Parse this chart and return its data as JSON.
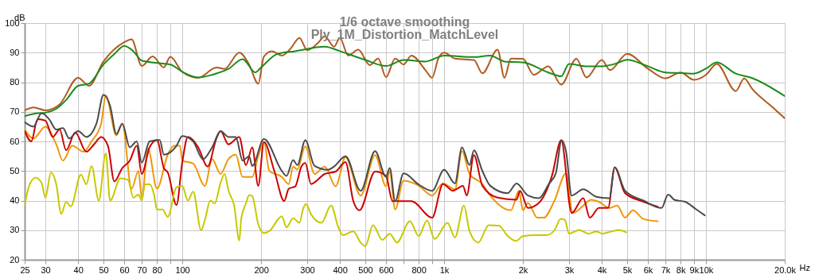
{
  "chart_data": {
    "type": "line",
    "title": "1/6 octave smoothing",
    "subtitle": "Ply_1M_Distortion_MatchLevel",
    "xlabel": "Hz",
    "ylabel": "dB",
    "log": "x",
    "grid": true,
    "xlim": [
      25,
      20000
    ],
    "ylim": [
      20,
      100
    ],
    "xticks": [
      25,
      30,
      40,
      50,
      60,
      70,
      80,
      {
        "value": 90,
        "label": null
      },
      100,
      200,
      300,
      400,
      500,
      600,
      {
        "value": 700,
        "label": null
      },
      800,
      {
        "value": 900,
        "label": null
      },
      {
        "value": 1000,
        "label": "1k"
      },
      {
        "value": 2000,
        "label": "2k"
      },
      {
        "value": 3000,
        "label": "3k"
      },
      {
        "value": 4000,
        "label": "4k"
      },
      {
        "value": 5000,
        "label": "5k"
      },
      {
        "value": 6000,
        "label": "6k"
      },
      {
        "value": 7000,
        "label": "7k"
      },
      {
        "value": 8000,
        "label": "8k"
      },
      {
        "value": 9000,
        "label": "9k"
      },
      {
        "value": 10000,
        "label": "10k"
      },
      {
        "value": 20000,
        "label": "20.0k"
      }
    ],
    "yticks": [
      20,
      30,
      40,
      50,
      60,
      70,
      80,
      90,
      100
    ],
    "series": [
      {
        "color": "#b05a20",
        "x": [
          25,
          27,
          30,
          34,
          40,
          44,
          50,
          60,
          64,
          70,
          77,
          85,
          90,
          100,
          115,
          135,
          145,
          165,
          180,
          195,
          205,
          220,
          240,
          260,
          280,
          300,
          330,
          350,
          380,
          400,
          430,
          470,
          520,
          560,
          600,
          650,
          700,
          750,
          850,
          900,
          950,
          1000,
          1100,
          1300,
          1400,
          1600,
          1700,
          1800,
          2000,
          2200,
          2500,
          2800,
          3200,
          3500,
          4000,
          4300,
          5000,
          6000,
          7000,
          8000,
          9000,
          10000,
          11000,
          13000,
          14000,
          15000,
          18000,
          20000
        ],
        "values": [
          70.5,
          71.5,
          70.5,
          72.5,
          81.5,
          78.8,
          87,
          93.5,
          94.5,
          85.5,
          88.7,
          85,
          88.6,
          83.5,
          81.5,
          85,
          84.5,
          90,
          86,
          79.5,
          88.7,
          90.5,
          89,
          91.5,
          95,
          90.8,
          93.3,
          95.5,
          92,
          95,
          89,
          91,
          85.8,
          88,
          81.7,
          88,
          86,
          89,
          84,
          81.5,
          88,
          90,
          88,
          87.5,
          83,
          91,
          81.5,
          88,
          87.9,
          82.5,
          85.4,
          79.2,
          87.9,
          81.6,
          87.5,
          84.1,
          89.6,
          84.6,
          81.3,
          83.3,
          80.8,
          82.5,
          86.2,
          77,
          81.3,
          77.8,
          71.5,
          67.8
        ]
      },
      {
        "color": "#1a8c1a",
        "x": [
          25,
          28,
          30,
          33,
          36,
          40,
          44,
          50,
          55,
          60,
          65,
          70,
          80,
          90,
          100,
          115,
          130,
          150,
          170,
          190,
          200,
          230,
          270,
          350,
          400,
          500,
          600,
          700,
          850,
          1000,
          1300,
          1500,
          1700,
          2000,
          2500,
          2800,
          3000,
          3500,
          4000,
          4500,
          5000,
          6000,
          7000,
          8000,
          9000,
          10000,
          11000,
          13000,
          15000,
          20000
        ],
        "values": [
          68.5,
          69.5,
          69.7,
          71,
          74,
          78.8,
          79.5,
          86,
          89.5,
          92.3,
          90.5,
          87.3,
          86.5,
          86,
          83.5,
          81.6,
          82.5,
          84.5,
          87.8,
          83.3,
          85,
          89.5,
          90.5,
          92,
          90.5,
          87.5,
          85.5,
          87.5,
          87,
          89,
          88.5,
          89,
          87,
          86.7,
          83.3,
          82,
          86.2,
          85.4,
          85.4,
          86.2,
          87.6,
          85.4,
          83.3,
          83.1,
          82.9,
          84.6,
          86.7,
          82.9,
          81.4,
          75.3
        ]
      },
      {
        "color": "#f0960a",
        "x": [
          25,
          27,
          30,
          33,
          35,
          38,
          42,
          45,
          49,
          51,
          56,
          59,
          64,
          68,
          70,
          74,
          80,
          88,
          93,
          98,
          100,
          110,
          122,
          130,
          140,
          150,
          160,
          170,
          185,
          195,
          205,
          215,
          240,
          255,
          265,
          275,
          295,
          320,
          350,
          385,
          420,
          480,
          545,
          600,
          620,
          650,
          700,
          800,
          900,
          990,
          1100,
          1170,
          1250,
          1400,
          1500,
          1800,
          1930,
          2000,
          2090,
          2270,
          2400,
          2640,
          2920,
          3100,
          3400,
          3640,
          3900,
          4280,
          4580,
          4910,
          5260,
          5770,
          6540
        ],
        "values": [
          64,
          61,
          65,
          59,
          53.5,
          58.5,
          56.5,
          60,
          66,
          75.5,
          62,
          66,
          44,
          50,
          41,
          57.5,
          44,
          55.5,
          58.5,
          58.5,
          53.5,
          52.5,
          45,
          54,
          49,
          54,
          55.5,
          48,
          48,
          55,
          59.8,
          50,
          48,
          45.6,
          51.5,
          50.5,
          58.3,
          49,
          51.5,
          44.8,
          54.6,
          41.7,
          55.4,
          44.8,
          50,
          37,
          46.7,
          45,
          41.7,
          45.8,
          43.8,
          56.7,
          49,
          45.6,
          41.7,
          36.7,
          43.3,
          36.7,
          39.2,
          34.2,
          34.2,
          40,
          49.2,
          35.8,
          38.3,
          40.3,
          39.6,
          37.5,
          38.3,
          34.2,
          36.7,
          33.8,
          33
        ]
      },
      {
        "color": "#cc0000",
        "x": [
          25,
          26.5,
          28,
          30,
          32,
          34,
          36,
          39,
          43,
          46,
          49,
          52,
          55,
          59,
          63,
          67,
          70,
          75,
          80,
          85,
          88,
          95,
          100,
          105,
          115,
          125,
          135,
          140,
          150,
          165,
          175,
          185,
          195,
          205,
          225,
          245,
          255,
          270,
          285,
          295,
          310,
          350,
          385,
          420,
          450,
          475,
          545,
          600,
          635,
          750,
          900,
          990,
          1080,
          1180,
          1220,
          1300,
          1400,
          1600,
          1890,
          1950,
          2090,
          2300,
          2580,
          2800,
          3070,
          3400,
          3600,
          3900,
          4230,
          4480,
          4910,
          5770,
          6540
        ],
        "values": [
          63.5,
          60,
          67.5,
          67,
          61.5,
          64,
          57,
          63,
          56.5,
          59,
          61.5,
          58.5,
          46.5,
          51,
          53.5,
          58.5,
          49,
          58,
          60.5,
          51,
          49.5,
          38.5,
          53,
          61.5,
          58,
          51.5,
          61,
          63.5,
          59,
          61.5,
          52,
          58,
          45,
          59.8,
          49.8,
          39.8,
          44,
          44.8,
          51.5,
          52.7,
          45.6,
          49,
          49.8,
          53,
          39.8,
          36.7,
          49.8,
          48.3,
          39.8,
          39.8,
          34.2,
          45.6,
          43.3,
          45,
          41.7,
          55.4,
          45,
          41,
          40.3,
          43.3,
          37.5,
          39.2,
          48.3,
          60.4,
          35.8,
          40.8,
          34.2,
          37.5,
          37.5,
          51.2,
          42.5,
          39.6,
          37.9
        ]
      },
      {
        "color": "#4a4a4a",
        "x": [
          25,
          27,
          29,
          31,
          33,
          35,
          37,
          40,
          43,
          47,
          50,
          53,
          56,
          59,
          63,
          67,
          70,
          75,
          82,
          85,
          95,
          100,
          110,
          120,
          130,
          140,
          150,
          160,
          170,
          180,
          185,
          205,
          240,
          250,
          265,
          275,
          295,
          320,
          360,
          380,
          420,
          480,
          545,
          600,
          620,
          650,
          700,
          800,
          900,
          1000,
          1100,
          1170,
          1250,
          1300,
          1400,
          1500,
          1750,
          1890,
          2090,
          2300,
          2520,
          2670,
          2810,
          2920,
          3070,
          3400,
          3810,
          4280,
          4480,
          4910,
          5770,
          6770,
          7170,
          7600,
          8330,
          9150,
          9900
        ],
        "values": [
          66.5,
          65,
          69.5,
          67.5,
          64,
          64.5,
          61,
          63.5,
          61.5,
          66,
          75.8,
          72,
          62.5,
          66,
          58,
          60,
          52.8,
          60,
          60.5,
          55.5,
          58.5,
          61.8,
          60,
          54,
          58,
          63.5,
          61.5,
          61.5,
          53.5,
          55,
          51.7,
          60.8,
          50,
          48.3,
          53.7,
          52,
          60.4,
          51.7,
          50.4,
          51.5,
          55,
          43.3,
          56.7,
          48,
          51,
          39.8,
          49.2,
          45.4,
          43.3,
          50.4,
          45.8,
          58,
          52,
          57,
          50,
          45,
          42.5,
          45.8,
          41.7,
          40.8,
          45.8,
          49.2,
          60.4,
          56.7,
          41.7,
          43.8,
          41.3,
          40.8,
          51.2,
          43.3,
          40,
          37.5,
          42,
          40.2,
          39.6,
          37.1,
          35
        ]
      },
      {
        "color": "#c8c800",
        "x": [
          25,
          26,
          27.5,
          29,
          30,
          31.5,
          33,
          34.5,
          36,
          37.5,
          41,
          43,
          45,
          48,
          51,
          53,
          58,
          62,
          65,
          68,
          70,
          72,
          75,
          78,
          80,
          84,
          88,
          95,
          100,
          105,
          110,
          118,
          122,
          128,
          133,
          140,
          145,
          150,
          158,
          165,
          168,
          175,
          180,
          185,
          195,
          205,
          215,
          240,
          250,
          265,
          280,
          290,
          297,
          310,
          340,
          370,
          395,
          410,
          450,
          480,
          500,
          535,
          580,
          620,
          660,
          740,
          800,
          860,
          920,
          1030,
          1100,
          1190,
          1250,
          1350,
          1480,
          1620,
          1750,
          1880,
          2000,
          2250,
          2460,
          2640,
          2790,
          2890,
          3000,
          3280,
          3560,
          3810,
          4030,
          4320,
          4680,
          4960
        ],
        "values": [
          38.5,
          45,
          47.7,
          46,
          41,
          49.5,
          45.5,
          35.5,
          39.5,
          38,
          48.8,
          45.5,
          51.7,
          40,
          56,
          40,
          47.5,
          47,
          41,
          42,
          40,
          45.5,
          45.5,
          42,
          37,
          37,
          34.5,
          44.5,
          45,
          40,
          43,
          30,
          33.5,
          40,
          39,
          46,
          49,
          43.5,
          38,
          26.5,
          34,
          39,
          41.8,
          41.5,
          32,
          29,
          29.7,
          34.7,
          31,
          34,
          32.5,
          37.5,
          38.8,
          35.4,
          32.5,
          38.3,
          30.8,
          28.3,
          29.6,
          25.8,
          24.6,
          31.7,
          26.7,
          28.8,
          25.8,
          33,
          28,
          33.3,
          27,
          32.5,
          27.5,
          38.3,
          29.7,
          25.8,
          31.7,
          31.5,
          28,
          26.3,
          28,
          28.3,
          28.3,
          30,
          33.8,
          33.5,
          28.8,
          30,
          28.8,
          29.5,
          28.8,
          29.5,
          30,
          29.2
        ]
      }
    ]
  }
}
